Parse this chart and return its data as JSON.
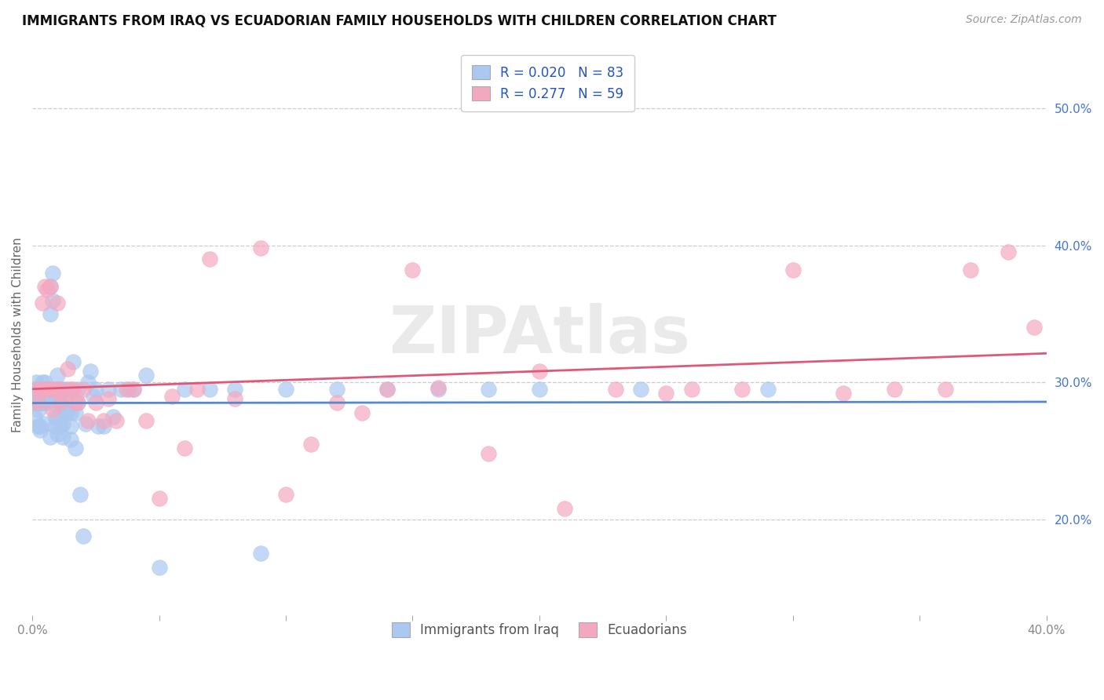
{
  "title": "IMMIGRANTS FROM IRAQ VS ECUADORIAN FAMILY HOUSEHOLDS WITH CHILDREN CORRELATION CHART",
  "source": "Source: ZipAtlas.com",
  "ylabel": "Family Households with Children",
  "xlim": [
    0.0,
    0.4
  ],
  "ylim": [
    0.13,
    0.54
  ],
  "xticks": [
    0.0,
    0.05,
    0.1,
    0.15,
    0.2,
    0.25,
    0.3,
    0.35,
    0.4
  ],
  "xtick_labels": [
    "0.0%",
    "",
    "",
    "",
    "",
    "",
    "",
    "",
    "40.0%"
  ],
  "yticks_right": [
    0.2,
    0.3,
    0.4,
    0.5
  ],
  "ytick_labels_right": [
    "20.0%",
    "30.0%",
    "40.0%",
    "50.0%"
  ],
  "legend_r_iraq": "0.020",
  "legend_n_iraq": "83",
  "legend_r_ecu": "0.277",
  "legend_n_ecu": "59",
  "color_iraq": "#aac8f0",
  "color_ecu": "#f4a8c0",
  "line_iraq": "#5588cc",
  "line_ecu": "#e05878",
  "watermark": "ZIPAtlas",
  "legend_label_iraq": "Immigrants from Iraq",
  "legend_label_ecu": "Ecuadorians",
  "iraq_x": [
    0.0005,
    0.0008,
    0.001,
    0.001,
    0.0015,
    0.002,
    0.002,
    0.0025,
    0.003,
    0.003,
    0.003,
    0.003,
    0.004,
    0.004,
    0.004,
    0.005,
    0.005,
    0.005,
    0.005,
    0.006,
    0.006,
    0.006,
    0.007,
    0.007,
    0.007,
    0.007,
    0.008,
    0.008,
    0.008,
    0.008,
    0.009,
    0.009,
    0.009,
    0.01,
    0.01,
    0.01,
    0.01,
    0.011,
    0.011,
    0.011,
    0.012,
    0.012,
    0.012,
    0.013,
    0.013,
    0.014,
    0.014,
    0.015,
    0.015,
    0.015,
    0.016,
    0.017,
    0.017,
    0.018,
    0.018,
    0.019,
    0.02,
    0.021,
    0.022,
    0.023,
    0.024,
    0.025,
    0.026,
    0.028,
    0.03,
    0.032,
    0.035,
    0.038,
    0.04,
    0.045,
    0.05,
    0.06,
    0.07,
    0.08,
    0.09,
    0.1,
    0.12,
    0.14,
    0.16,
    0.18,
    0.2,
    0.24,
    0.29
  ],
  "iraq_y": [
    0.285,
    0.29,
    0.295,
    0.275,
    0.3,
    0.288,
    0.268,
    0.28,
    0.285,
    0.292,
    0.268,
    0.265,
    0.295,
    0.3,
    0.285,
    0.27,
    0.285,
    0.295,
    0.3,
    0.285,
    0.295,
    0.29,
    0.37,
    0.35,
    0.295,
    0.26,
    0.38,
    0.36,
    0.295,
    0.29,
    0.275,
    0.268,
    0.285,
    0.295,
    0.262,
    0.275,
    0.305,
    0.268,
    0.285,
    0.295,
    0.26,
    0.295,
    0.27,
    0.278,
    0.29,
    0.28,
    0.295,
    0.268,
    0.258,
    0.278,
    0.315,
    0.252,
    0.278,
    0.285,
    0.295,
    0.218,
    0.188,
    0.27,
    0.3,
    0.308,
    0.29,
    0.295,
    0.268,
    0.268,
    0.295,
    0.275,
    0.295,
    0.295,
    0.295,
    0.305,
    0.165,
    0.295,
    0.295,
    0.295,
    0.175,
    0.295,
    0.295,
    0.295,
    0.295,
    0.295,
    0.295,
    0.295,
    0.295
  ],
  "ecu_x": [
    0.001,
    0.002,
    0.003,
    0.004,
    0.005,
    0.005,
    0.006,
    0.006,
    0.007,
    0.007,
    0.008,
    0.009,
    0.01,
    0.01,
    0.011,
    0.012,
    0.013,
    0.014,
    0.015,
    0.016,
    0.017,
    0.018,
    0.02,
    0.022,
    0.025,
    0.028,
    0.03,
    0.033,
    0.037,
    0.04,
    0.045,
    0.05,
    0.055,
    0.06,
    0.065,
    0.07,
    0.08,
    0.09,
    0.1,
    0.11,
    0.12,
    0.13,
    0.14,
    0.15,
    0.16,
    0.18,
    0.2,
    0.21,
    0.23,
    0.25,
    0.26,
    0.28,
    0.3,
    0.32,
    0.34,
    0.36,
    0.37,
    0.385,
    0.395
  ],
  "ecu_y": [
    0.295,
    0.285,
    0.295,
    0.358,
    0.37,
    0.295,
    0.295,
    0.368,
    0.37,
    0.295,
    0.28,
    0.295,
    0.295,
    0.358,
    0.285,
    0.295,
    0.29,
    0.31,
    0.295,
    0.295,
    0.285,
    0.285,
    0.295,
    0.272,
    0.285,
    0.272,
    0.288,
    0.272,
    0.295,
    0.295,
    0.272,
    0.215,
    0.29,
    0.252,
    0.295,
    0.39,
    0.288,
    0.398,
    0.218,
    0.255,
    0.285,
    0.278,
    0.295,
    0.382,
    0.296,
    0.248,
    0.308,
    0.208,
    0.295,
    0.292,
    0.295,
    0.295,
    0.382,
    0.292,
    0.295,
    0.295,
    0.382,
    0.395,
    0.34
  ]
}
